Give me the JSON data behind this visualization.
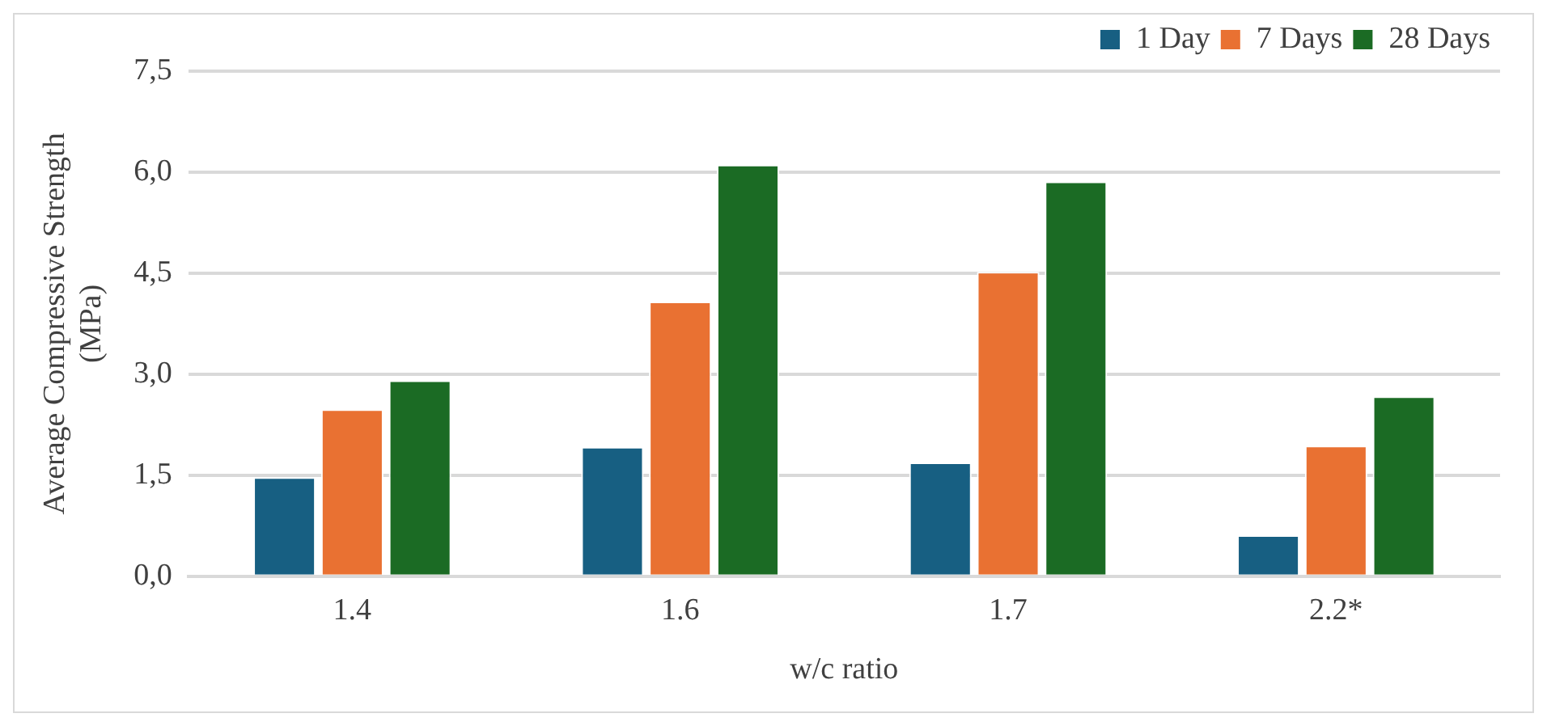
{
  "chart_data": {
    "type": "bar",
    "xlabel": "w/c ratio",
    "ylabel": "Average Compressive Strength (MPa)",
    "categories": [
      "1.4",
      "1.6",
      "1.7",
      "2.2*"
    ],
    "series": [
      {
        "name": "1 Day",
        "color": "#175f82",
        "values": [
          1.47,
          1.92,
          1.69,
          0.61
        ]
      },
      {
        "name": "7 Days",
        "color": "#e97132",
        "values": [
          2.48,
          4.08,
          4.52,
          1.94
        ]
      },
      {
        "name": "28 Days",
        "color": "#1b6b24",
        "values": [
          2.91,
          6.11,
          5.86,
          2.67
        ]
      }
    ],
    "ylim": [
      0,
      7.5
    ],
    "yticks": [
      {
        "value": 0,
        "label": "0,0"
      },
      {
        "value": 1.5,
        "label": "1,5"
      },
      {
        "value": 3,
        "label": "3,0"
      },
      {
        "value": 4.5,
        "label": "4,5"
      },
      {
        "value": 6,
        "label": "6,0"
      },
      {
        "value": 7.5,
        "label": "7,5"
      }
    ],
    "grid": "y",
    "legend": "top right"
  }
}
